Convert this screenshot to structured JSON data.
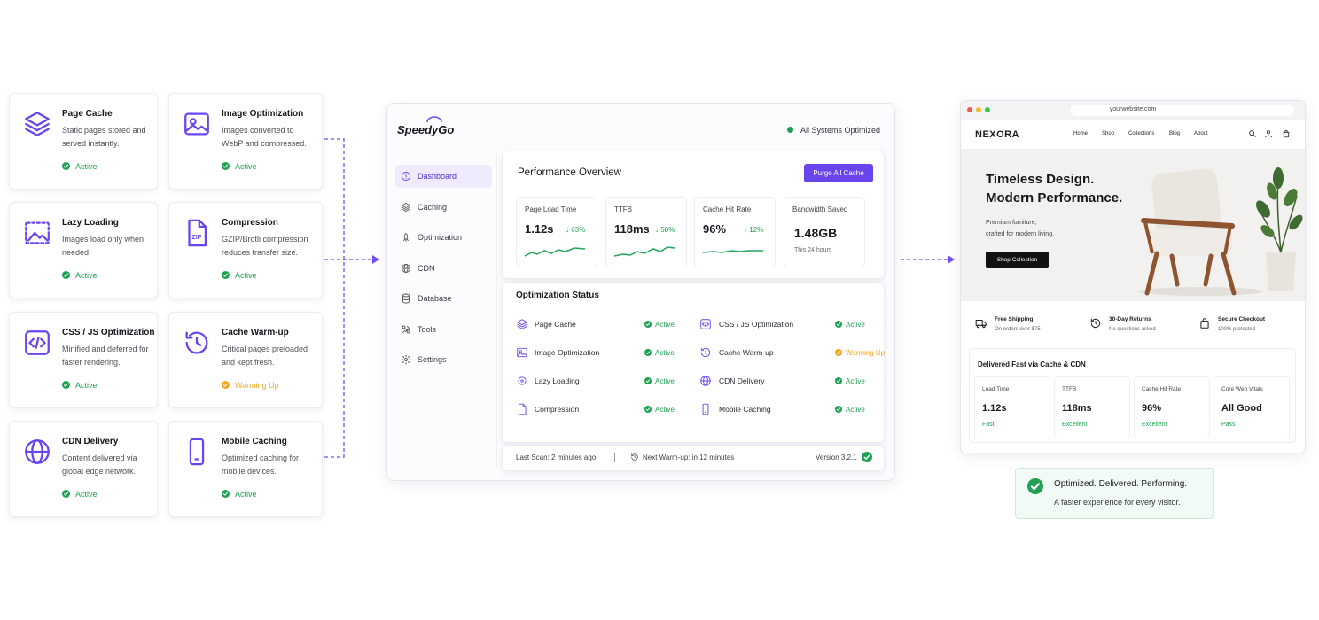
{
  "features": [
    {
      "title": "Page Cache",
      "description": "Static pages stored and served instantly.",
      "status": "Active",
      "color": "#1fa053"
    },
    {
      "title": "Image Optimization",
      "description": "Images converted to WebP and compressed.",
      "status": "Active",
      "color": "#1fa053"
    },
    {
      "title": "Lazy Loading",
      "description": "Images load only when needed.",
      "status": "Active",
      "color": "#1fa053"
    },
    {
      "title": "Compression",
      "icon_label": "ZIP",
      "description": "GZIP/Brotli compression reduces transfer size.",
      "status": "Active",
      "color": "#1fa053"
    },
    {
      "title": "CSS / JS Optimization",
      "description": "Minified and deferred for faster rendering.",
      "status": "Active",
      "color": "#1fa053"
    },
    {
      "title": "Cache Warm-up",
      "description": "Critical pages preloaded and kept fresh.",
      "status": "Warming Up",
      "color": "#f5a623"
    },
    {
      "title": "CDN Delivery",
      "description": "Content delivered via global edge network.",
      "status": "Active",
      "color": "#1fa053"
    },
    {
      "title": "Mobile Caching",
      "description": "Optimized caching for mobile devices.",
      "status": "Active",
      "color": "#1fa053"
    }
  ],
  "dashboard": {
    "brand": "SpeedyGo",
    "status": "All Systems Optimized",
    "nav": [
      "Dashboard",
      "Caching",
      "Optimization",
      "CDN",
      "Database",
      "Tools",
      "Settings"
    ],
    "title": "Performance Overview",
    "button": "Purge All Cache",
    "metrics": [
      {
        "label": "Page Load Time",
        "value": "1.12s",
        "change": "↓ 63%"
      },
      {
        "label": "TTFB",
        "value": "118ms",
        "change": "↓ 58%"
      },
      {
        "label": "Cache Hit Rate",
        "value": "96%",
        "change": "↑ 12%"
      },
      {
        "label": "Bandwidth Saved",
        "value": "1.48GB",
        "sub": "This 24 hours"
      }
    ],
    "status_title": "Optimization Status",
    "status_items": [
      {
        "name": "Page Cache",
        "status": "Active",
        "color": "#1fa053"
      },
      {
        "name": "CSS / JS Optimization",
        "status": "Active",
        "color": "#1fa053"
      },
      {
        "name": "Image Optimization",
        "status": "Active",
        "color": "#1fa053"
      },
      {
        "name": "Cache Warm-up",
        "status": "Warming Up",
        "color": "#f5a623"
      },
      {
        "name": "Lazy Loading",
        "status": "Active",
        "color": "#1fa053"
      },
      {
        "name": "CDN Delivery",
        "status": "Active",
        "color": "#1fa053"
      },
      {
        "name": "Compression",
        "status": "Active",
        "color": "#1fa053"
      },
      {
        "name": "Mobile Caching",
        "status": "Active",
        "color": "#1fa053"
      }
    ],
    "footer": {
      "last_scan": "Last Scan: 2 minutes ago",
      "next_warmup": "Next Warm-up: in 12 minutes",
      "version": "Version 3.2.1"
    }
  },
  "website": {
    "url": "yourwebsite.com",
    "logo": "NEXORA",
    "nav": [
      "Home",
      "Shop",
      "Collections",
      "Blog",
      "About"
    ],
    "hero_title": [
      "Timeless Design.",
      "Modern Performance."
    ],
    "hero_subtitle": "Premium furniture, crafted for modern living.",
    "hero_button": "Shop Collection",
    "perks": [
      {
        "title": "Free Shipping",
        "sub": "On orders over $75"
      },
      {
        "title": "30-Day Returns",
        "sub": "No questions asked"
      },
      {
        "title": "Secure Checkout",
        "sub": "100% protected"
      }
    ],
    "delivered_title": "Delivered Fast via Cache & CDN",
    "stats": [
      {
        "label": "Load Time",
        "value": "1.12s",
        "note": "Fast"
      },
      {
        "label": "TTFB",
        "value": "118ms",
        "note": "Excellent"
      },
      {
        "label": "Cache Hit Rate",
        "value": "96%",
        "note": "Excellent"
      },
      {
        "label": "Core Web Vitals",
        "value": "All Good",
        "note": "Pass"
      }
    ]
  },
  "banner": {
    "title": "Optimized. Delivered. Performing.",
    "subtitle": "A faster experience for every visitor."
  }
}
